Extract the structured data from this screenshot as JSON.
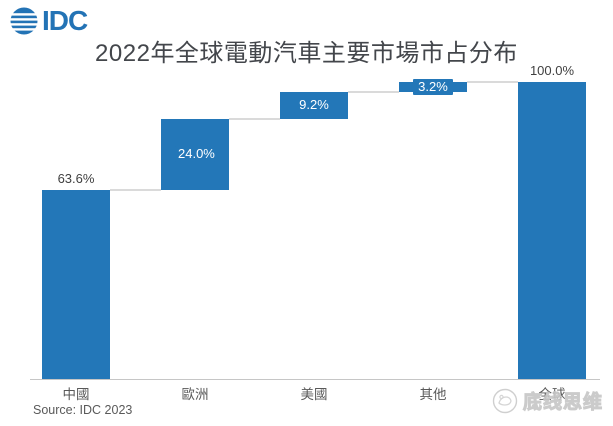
{
  "header": {
    "logo_text": "IDC",
    "logo_color": "#2373B5"
  },
  "chart_data": {
    "type": "bar",
    "subtype": "waterfall",
    "title": "2022年全球電動汽車主要市場市占分布",
    "categories": [
      "中國",
      "歐洲",
      "美國",
      "其他",
      "全球"
    ],
    "values": [
      63.6,
      24.0,
      9.2,
      3.2,
      100.0
    ],
    "value_labels": [
      "63.6%",
      "24.0%",
      "9.2%",
      "3.2%",
      "100.0%"
    ],
    "is_total": [
      false,
      false,
      false,
      false,
      true
    ],
    "label_placement": [
      "above",
      "inside",
      "inside",
      "inside",
      "above"
    ],
    "ylim": [
      0,
      100
    ],
    "grid": false,
    "legend": false,
    "bar_color": "#2377B8",
    "connector_color": "#DADADA",
    "axis_line_color": "#C6C6C6",
    "above_label_color": "#404040",
    "inside_label_color": "#FFFFFF",
    "category_label_color": "#595959"
  },
  "footer": {
    "source": "Source: IDC 2023",
    "watermark": "底线思维"
  }
}
